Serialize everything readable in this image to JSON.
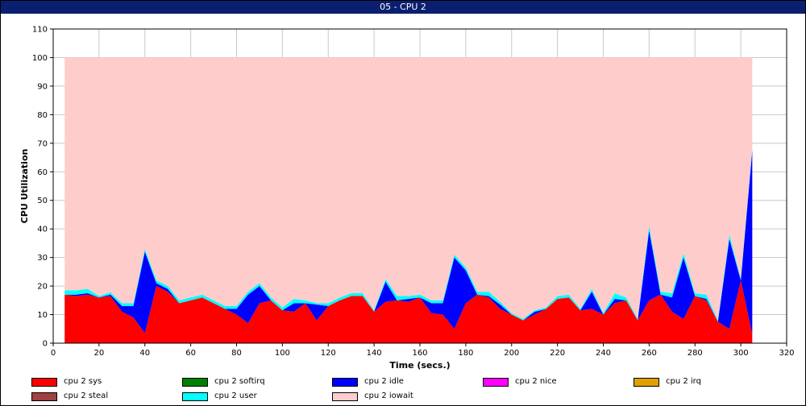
{
  "window": {
    "title": "05 - CPU 2"
  },
  "chart_data": {
    "type": "area",
    "stacked": true,
    "title": "05 - CPU 2",
    "xlabel": "Time (secs.)",
    "ylabel": "CPU Utilization",
    "xlim": [
      0,
      320
    ],
    "ylim": [
      0,
      110
    ],
    "xticks": [
      "0",
      "20",
      "40",
      "60",
      "80",
      "100",
      "120",
      "140",
      "160",
      "180",
      "200",
      "220",
      "240",
      "260",
      "280",
      "300",
      "320"
    ],
    "yticks": [
      "0",
      "10",
      "20",
      "30",
      "40",
      "50",
      "60",
      "70",
      "80",
      "90",
      "100",
      "110"
    ],
    "grid": true,
    "legend_position": "bottom",
    "x": [
      5,
      10,
      15,
      20,
      25,
      30,
      35,
      40,
      45,
      50,
      55,
      60,
      65,
      70,
      75,
      80,
      85,
      90,
      95,
      100,
      105,
      110,
      115,
      120,
      125,
      130,
      135,
      140,
      145,
      150,
      155,
      160,
      165,
      170,
      175,
      180,
      185,
      190,
      195,
      200,
      205,
      210,
      215,
      220,
      225,
      230,
      235,
      240,
      245,
      250,
      255,
      260,
      265,
      270,
      275,
      280,
      285,
      290,
      295,
      300,
      305
    ],
    "series": [
      {
        "name": "cpu 2 sys",
        "color": "#ff0000",
        "values": [
          17,
          16.5,
          17,
          16,
          16.5,
          11,
          9,
          3.5,
          20,
          18,
          14,
          15,
          16,
          14,
          12,
          10,
          7,
          14,
          15,
          11.5,
          11,
          14,
          8,
          13,
          15,
          16.5,
          16.5,
          11,
          14.5,
          15,
          14.5,
          16,
          10.5,
          10,
          5,
          14,
          17,
          16,
          12,
          10,
          8,
          10,
          12,
          15.5,
          16,
          11.5,
          12,
          10,
          14,
          15,
          8,
          15,
          17,
          11,
          8.5,
          16.5,
          15,
          7.5,
          5,
          22,
          3
        ]
      },
      {
        "name": "cpu 2 softirq",
        "color": "#008000",
        "values": [
          0,
          0,
          0,
          0,
          0,
          0,
          0,
          0,
          0,
          0,
          0,
          0,
          0,
          0,
          0,
          0,
          0,
          0,
          0,
          0,
          0,
          0,
          0,
          0,
          0,
          0,
          0,
          0,
          0,
          0,
          0,
          0,
          0,
          0,
          0,
          0,
          0,
          0,
          0,
          0,
          0,
          0,
          0,
          0,
          0,
          0,
          0,
          0,
          0,
          0,
          0,
          0,
          0,
          0,
          0,
          0,
          0,
          0,
          0,
          0,
          0
        ]
      },
      {
        "name": "cpu 2 idle",
        "color": "#0000ff",
        "values": [
          0,
          0.5,
          0.5,
          0,
          0.5,
          2,
          4,
          28.5,
          1,
          1,
          0,
          0,
          0,
          0,
          0,
          2,
          10,
          6,
          0,
          0,
          3,
          0,
          5.5,
          0,
          0,
          0,
          0,
          0,
          7,
          0,
          1,
          0,
          3.5,
          4,
          25,
          11.5,
          0,
          0.5,
          1.5,
          0,
          0,
          1,
          0,
          0,
          0,
          0,
          6,
          0,
          1.5,
          0,
          0,
          24.5,
          0,
          5,
          21.5,
          0,
          0.5,
          0,
          31.5,
          0,
          64.5
        ]
      },
      {
        "name": "cpu 2 nice",
        "color": "#ff00ff",
        "values": [
          0,
          0,
          0,
          0,
          0,
          0,
          0,
          0,
          0,
          0,
          0,
          0,
          0,
          0,
          0,
          0,
          0,
          0,
          0,
          0,
          0,
          0,
          0,
          0,
          0,
          0,
          0,
          0,
          0,
          0,
          0,
          0,
          0,
          0,
          0,
          0,
          0,
          0,
          0,
          0,
          0,
          0,
          0,
          0,
          0,
          0,
          0,
          0,
          0,
          0,
          0,
          0,
          0,
          0,
          0,
          0,
          0,
          0,
          0,
          0,
          0
        ]
      },
      {
        "name": "cpu 2 irq",
        "color": "#e0a000",
        "values": [
          0,
          0,
          0,
          0,
          0,
          0,
          0,
          0,
          0,
          0,
          0,
          0,
          0,
          0,
          0,
          0,
          0,
          0,
          0,
          0,
          0,
          0,
          0,
          0,
          0,
          0,
          0,
          0,
          0,
          0,
          0,
          0,
          0,
          0,
          0,
          0,
          0,
          0,
          0,
          0,
          0,
          0,
          0,
          0,
          0,
          0,
          0,
          0,
          0,
          0,
          0,
          0,
          0,
          0,
          0,
          0,
          0,
          0,
          0,
          0,
          0
        ]
      },
      {
        "name": "cpu 2 steal",
        "color": "#a04040",
        "values": [
          0,
          0,
          0,
          0,
          0,
          0,
          0,
          0,
          0,
          0,
          0,
          0,
          0,
          0,
          0,
          0,
          0,
          0,
          0,
          0,
          0,
          0,
          0,
          0,
          0,
          0,
          0,
          0,
          0,
          0,
          0,
          0,
          0,
          0,
          0,
          0,
          0,
          0,
          0,
          0,
          0,
          0,
          0,
          0,
          0,
          0,
          0,
          0,
          0,
          0,
          0,
          0,
          0,
          0,
          0,
          0,
          0,
          0,
          0,
          0,
          0
        ]
      },
      {
        "name": "cpu 2 user",
        "color": "#00ffff",
        "values": [
          1.5,
          1.5,
          1.5,
          0.5,
          0.8,
          1,
          1,
          1,
          1,
          1,
          1,
          1,
          1,
          1,
          1,
          1,
          1,
          1,
          1,
          1,
          1.5,
          1,
          0.5,
          1,
          1,
          1,
          1,
          0.5,
          1,
          1.5,
          1,
          1,
          1,
          1,
          1,
          1,
          1,
          1.5,
          1,
          0.5,
          0.5,
          0.5,
          0.5,
          1,
          1,
          0.5,
          1,
          0.5,
          2,
          1,
          0.5,
          1.5,
          1,
          1.5,
          1.5,
          1,
          1.5,
          0.5,
          1.5,
          0.5,
          1
        ]
      },
      {
        "name": "cpu 2 iowait",
        "color": "#ffcccc",
        "values": [
          81.5,
          81.5,
          81,
          83.5,
          82.2,
          86,
          86,
          67,
          78,
          80,
          85,
          84,
          83,
          85,
          87,
          87,
          82,
          79,
          84,
          87.5,
          84.5,
          85,
          86,
          86,
          84,
          82.5,
          82.5,
          88.5,
          77.5,
          83.5,
          83.5,
          83,
          85,
          85,
          69,
          73.5,
          82,
          82,
          85.5,
          89.5,
          91.5,
          88.5,
          87.5,
          83.5,
          83,
          88,
          81,
          89.5,
          82.5,
          84,
          91.5,
          59,
          82,
          82.5,
          68.5,
          82.5,
          83,
          92,
          62,
          77.5,
          31.5
        ]
      }
    ]
  }
}
